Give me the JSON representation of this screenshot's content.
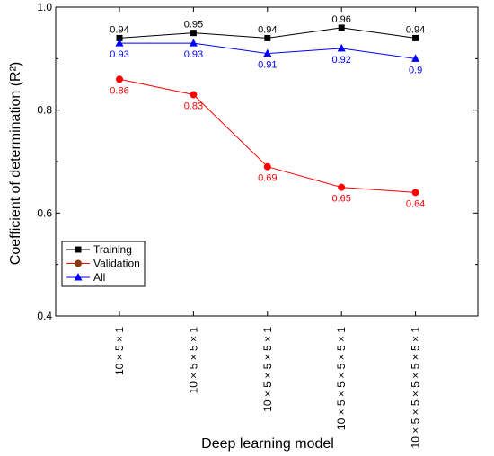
{
  "chart_data": {
    "type": "line",
    "categories": [
      "10 × 5 × 1",
      "10 × 5 × 5 × 1",
      "10 × 5 × 5 × 5 × 1",
      "10 × 5 × 5 × 5 × 5 × 1",
      "10 × 5 × 5 × 5 × 5 × 5 × 1"
    ],
    "series": [
      {
        "name": "Training",
        "color": "#000000",
        "marker": "square",
        "values": [
          0.94,
          0.95,
          0.94,
          0.96,
          0.94
        ],
        "labels": [
          "0.94",
          "0.95",
          "0.94",
          "0.96",
          "0.94"
        ],
        "label_position": "above"
      },
      {
        "name": "Validation",
        "color": "#ff0000",
        "marker": "circle",
        "values": [
          0.86,
          0.83,
          0.69,
          0.65,
          0.64
        ],
        "labels": [
          "0.86",
          "0.83",
          "0.69",
          "0.65",
          "0.64"
        ],
        "label_position": "below"
      },
      {
        "name": "All",
        "color": "#0000ff",
        "marker": "triangle",
        "values": [
          0.93,
          0.93,
          0.91,
          0.92,
          0.9
        ],
        "labels": [
          "0.93",
          "0.93",
          "0.91",
          "0.92",
          "0.9"
        ],
        "label_position": "below"
      }
    ],
    "xlabel": "Deep learning model",
    "ylabel": "Coefficient of determination (R²)",
    "ylim": [
      0.4,
      1.0
    ],
    "yticks": [
      "0.4",
      "0.6",
      "0.8",
      "1.0"
    ],
    "grid": false,
    "legend_position": "bottom-left"
  }
}
